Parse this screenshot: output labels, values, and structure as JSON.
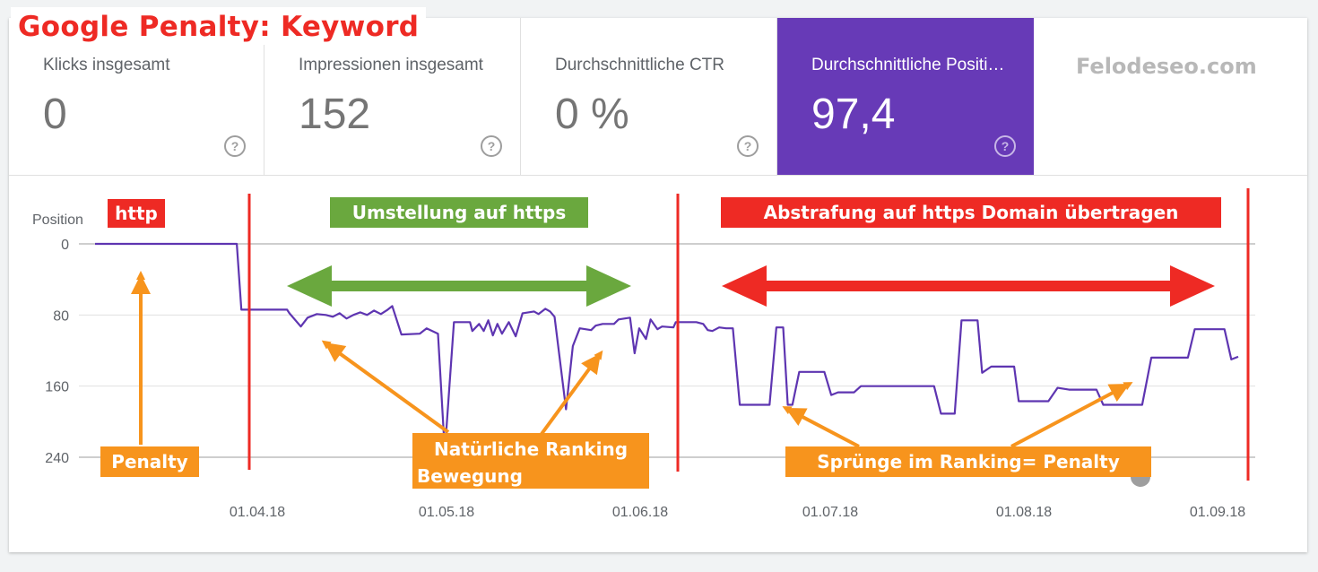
{
  "title": "Google Penalty: Keyword",
  "watermark": "Felodeseo.com",
  "metrics": [
    {
      "label": "Klicks insgesamt",
      "value": "0",
      "help": "?"
    },
    {
      "label": "Impressionen insgesamt",
      "value": "152",
      "help": "?"
    },
    {
      "label": "Durchschnittliche CTR",
      "value": "0 %",
      "help": "?"
    },
    {
      "label": "Durchschnittliche Positi…",
      "value": "97,4",
      "help": "?"
    }
  ],
  "colors": {
    "accent": "#673ab7",
    "line": "#5e35b1",
    "red": "#ee2a24",
    "green": "#6aa83e",
    "orange": "#f7941d"
  },
  "chart_data": {
    "type": "line",
    "ylabel": "Position",
    "y_inverted": true,
    "ylim": [
      0,
      240
    ],
    "yticks": [
      0,
      80,
      160,
      240
    ],
    "xticks": [
      "01.04.18",
      "01.05.18",
      "01.06.18",
      "01.07.18",
      "01.08.18",
      "01.09.18"
    ],
    "series": [
      {
        "values": [
          [
            0,
            0
          ],
          [
            62,
            0
          ],
          [
            64,
            74
          ],
          [
            84,
            74
          ],
          [
            85,
            78
          ],
          [
            90,
            93
          ],
          [
            93,
            83
          ],
          [
            97,
            79
          ],
          [
            101,
            80
          ],
          [
            104,
            82
          ],
          [
            107,
            78
          ],
          [
            110,
            84
          ],
          [
            113,
            80
          ],
          [
            116,
            77
          ],
          [
            119,
            80
          ],
          [
            122,
            75
          ],
          [
            125,
            79
          ],
          [
            128,
            74
          ],
          [
            130,
            70
          ],
          [
            134,
            102
          ],
          [
            142,
            101
          ],
          [
            145,
            95
          ],
          [
            150,
            101
          ],
          [
            153,
            234
          ],
          [
            157,
            88
          ],
          [
            164,
            88
          ],
          [
            165,
            98
          ],
          [
            168,
            90
          ],
          [
            170,
            98
          ],
          [
            172,
            86
          ],
          [
            174,
            103
          ],
          [
            176,
            90
          ],
          [
            178,
            101
          ],
          [
            181,
            88
          ],
          [
            184,
            104
          ],
          [
            187,
            78
          ],
          [
            192,
            76
          ],
          [
            194,
            79
          ],
          [
            197,
            73
          ],
          [
            199,
            76
          ],
          [
            201,
            82
          ],
          [
            206,
            186
          ],
          [
            209,
            115
          ],
          [
            212,
            95
          ],
          [
            217,
            97
          ],
          [
            219,
            92
          ],
          [
            222,
            90
          ],
          [
            227,
            90
          ],
          [
            229,
            85
          ],
          [
            234,
            83
          ],
          [
            236,
            123
          ],
          [
            238,
            95
          ],
          [
            241,
            107
          ],
          [
            243,
            85
          ],
          [
            246,
            96
          ],
          [
            248,
            93
          ],
          [
            253,
            94
          ],
          [
            254,
            88
          ],
          [
            263,
            88
          ],
          [
            266,
            90
          ],
          [
            268,
            97
          ],
          [
            270,
            98
          ],
          [
            273,
            94
          ],
          [
            276,
            95
          ],
          [
            279,
            95
          ],
          [
            282,
            181
          ],
          [
            295,
            181
          ],
          [
            298,
            94
          ],
          [
            301,
            94
          ],
          [
            303,
            181
          ],
          [
            305,
            181
          ],
          [
            308,
            144
          ],
          [
            319,
            144
          ],
          [
            322,
            170
          ],
          [
            325,
            167
          ],
          [
            332,
            167
          ],
          [
            335,
            160
          ],
          [
            367,
            160
          ],
          [
            370,
            191
          ],
          [
            376,
            191
          ],
          [
            379,
            86
          ],
          [
            386,
            86
          ],
          [
            388,
            145
          ],
          [
            392,
            138
          ],
          [
            402,
            138
          ],
          [
            404,
            177
          ],
          [
            417,
            177
          ],
          [
            421,
            162
          ],
          [
            426,
            164
          ],
          [
            438,
            164
          ],
          [
            441,
            181
          ],
          [
            458,
            181
          ],
          [
            462,
            128
          ],
          [
            478,
            128
          ],
          [
            481,
            96
          ],
          [
            494,
            96
          ],
          [
            497,
            130
          ],
          [
            500,
            127
          ]
        ]
      }
    ],
    "annotations": {
      "http": "http",
      "https_switch": "Umstellung auf https",
      "penalty_transfer": "Abstrafung auf https Domain übertragen",
      "penalty": "Penalty",
      "natural_line1": "Natürliche Ranking",
      "natural_line2": "Bewegung",
      "jumps": "Sprünge im Ranking= Penalty"
    }
  }
}
